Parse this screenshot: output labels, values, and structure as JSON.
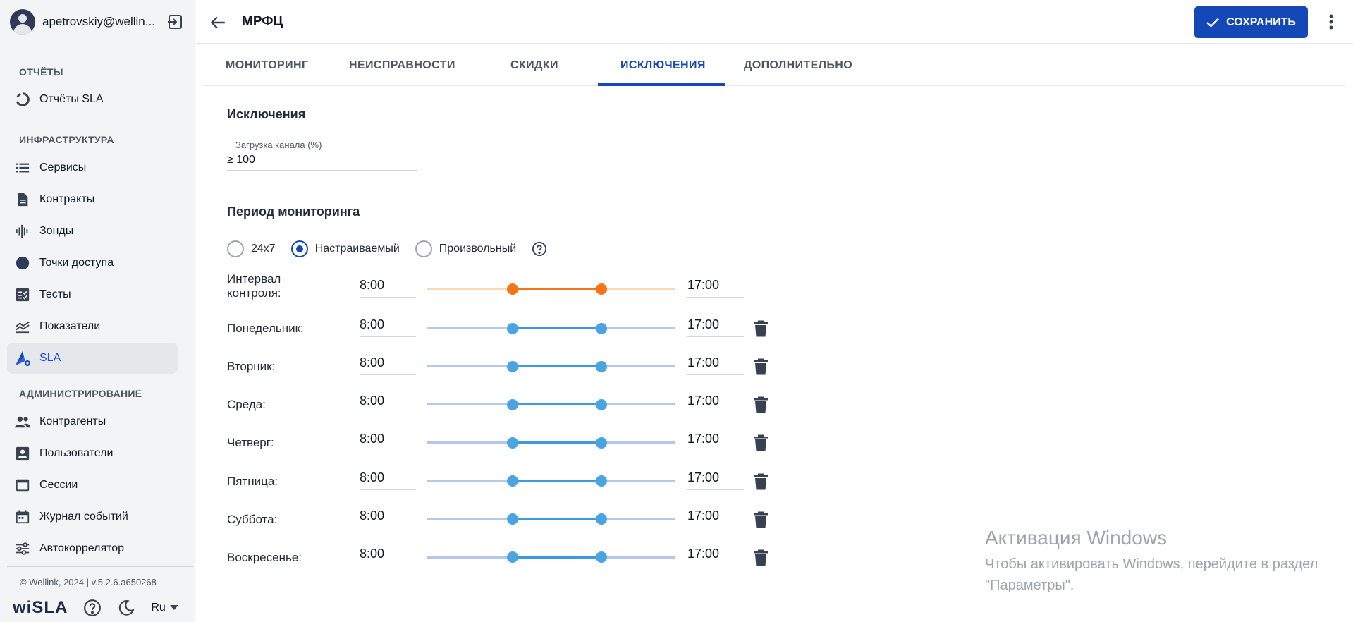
{
  "sidebar": {
    "user": "apetrovskiy@wellin...",
    "sections": {
      "reports": "ОТЧЁТЫ",
      "infrastructure": "ИНФРАСТРУКТУРА",
      "admin": "АДМИНИСТРИРОВАНИЕ"
    },
    "items": {
      "sla_reports": "Отчёты SLA",
      "services": "Сервисы",
      "contracts": "Контракты",
      "probes": "Зонды",
      "access_points": "Точки доступа",
      "tests": "Тесты",
      "metrics": "Показатели",
      "sla": "SLA",
      "counterparties": "Контрагенты",
      "users": "Пользователи",
      "sessions": "Сессии",
      "event_log": "Журнал событий",
      "autocorrelator": "Автокоррелятор"
    },
    "active_item": "sla",
    "footer": "© Wellink, 2024 | v.5.2.6.a650268",
    "brand": "wiSLA",
    "language": "Ru"
  },
  "header": {
    "title": "МРФЦ",
    "save_label": "СОХРАНИТЬ"
  },
  "tabs": {
    "monitoring": "МОНИТОРИНГ",
    "faults": "НЕИСПРАВНОСТИ",
    "discounts": "СКИДКИ",
    "exclusions": "ИСКЛЮЧЕНИЯ",
    "additional": "ДОПОЛНИТЕЛЬНО",
    "active": "exclusions"
  },
  "exclusions": {
    "heading": "Исключения",
    "channel_load_label": "Загрузка канала (%)",
    "channel_load_value": "≥ 100"
  },
  "period": {
    "heading": "Период мониторинга",
    "options": {
      "o24x7": "24x7",
      "custom": "Настраиваемый",
      "arbitrary": "Произвольный"
    },
    "selected": "custom",
    "interval": {
      "label": "Интервал контроля:",
      "start": "8:00",
      "end": "17:00"
    },
    "days": [
      {
        "label": "Понедельник:",
        "start": "8:00",
        "end": "17:00"
      },
      {
        "label": "Вторник:",
        "start": "8:00",
        "end": "17:00"
      },
      {
        "label": "Среда:",
        "start": "8:00",
        "end": "17:00"
      },
      {
        "label": "Четверг:",
        "start": "8:00",
        "end": "17:00"
      },
      {
        "label": "Пятница:",
        "start": "8:00",
        "end": "17:00"
      },
      {
        "label": "Суббота:",
        "start": "8:00",
        "end": "17:00"
      },
      {
        "label": "Воскресенье:",
        "start": "8:00",
        "end": "17:00"
      }
    ]
  },
  "watermark": {
    "title": "Активация Windows",
    "text": "Чтобы активировать Windows, перейдите в раздел \"Параметры\"."
  },
  "colors": {
    "accent": "#1448b8",
    "interval_track": "#f97316",
    "interval_track_light": "#fcd9b0",
    "day_track": "#3b9ae1",
    "day_track_light": "#b4c8ea",
    "knob_day": "#4aa4e2"
  }
}
